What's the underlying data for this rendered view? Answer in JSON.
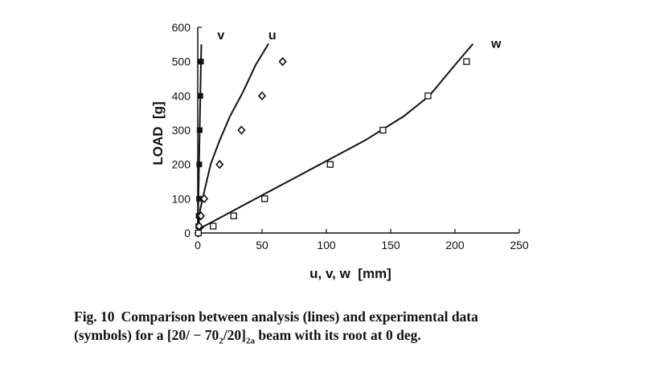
{
  "chart_data": {
    "type": "scatter",
    "xlabel": "u, v, w  [mm]",
    "ylabel": "LOAD  [g]",
    "xlim": [
      0,
      250
    ],
    "ylim": [
      0,
      600
    ],
    "x_ticks": [
      "0",
      "50",
      "100",
      "150",
      "200",
      "250"
    ],
    "y_ticks": [
      "0",
      "100",
      "200",
      "300",
      "400",
      "500",
      "600"
    ],
    "grid": false,
    "series_labels": {
      "v": "v",
      "u": "u",
      "w": "w"
    },
    "experimental": [
      {
        "name": "v",
        "marker": "filled-square",
        "points": [
          [
            0.5,
            0
          ],
          [
            0.5,
            20
          ],
          [
            0.7,
            50
          ],
          [
            1.0,
            100
          ],
          [
            1.2,
            200
          ],
          [
            1.5,
            300
          ],
          [
            2.0,
            400
          ],
          [
            2.5,
            500
          ]
        ]
      },
      {
        "name": "u",
        "marker": "diamond",
        "points": [
          [
            0.5,
            0
          ],
          [
            1.0,
            20
          ],
          [
            2.5,
            50
          ],
          [
            5,
            100
          ],
          [
            17,
            200
          ],
          [
            34,
            300
          ],
          [
            50,
            400
          ],
          [
            66,
            500
          ]
        ]
      },
      {
        "name": "w",
        "marker": "open-square",
        "points": [
          [
            0.5,
            0
          ],
          [
            12,
            20
          ],
          [
            28,
            50
          ],
          [
            52,
            100
          ],
          [
            103,
            200
          ],
          [
            144,
            300
          ],
          [
            179,
            400
          ],
          [
            209,
            500
          ]
        ]
      }
    ],
    "analysis": [
      {
        "name": "v",
        "points": [
          [
            0,
            0
          ],
          [
            0.5,
            100
          ],
          [
            1.0,
            200
          ],
          [
            1.5,
            300
          ],
          [
            2.0,
            400
          ],
          [
            2.5,
            500
          ],
          [
            2.8,
            550
          ]
        ]
      },
      {
        "name": "u",
        "points": [
          [
            0,
            0
          ],
          [
            2,
            70
          ],
          [
            5,
            120
          ],
          [
            10,
            200
          ],
          [
            17,
            270
          ],
          [
            25,
            340
          ],
          [
            35,
            410
          ],
          [
            45,
            490
          ],
          [
            55,
            552
          ]
        ]
      },
      {
        "name": "w",
        "points": [
          [
            0,
            0
          ],
          [
            5,
            20
          ],
          [
            20,
            50
          ],
          [
            40,
            90
          ],
          [
            60,
            130
          ],
          [
            80,
            170
          ],
          [
            100,
            210
          ],
          [
            130,
            270
          ],
          [
            160,
            340
          ],
          [
            180,
            400
          ],
          [
            200,
            490
          ],
          [
            214,
            552
          ]
        ]
      }
    ]
  },
  "caption": {
    "figure_label": "Fig. 10",
    "line1": "Comparison between analysis (lines) and experimental data",
    "line2_pre": "(symbols) for a [20/ − 70",
    "sub1": "2",
    "line2_mid": "/20]",
    "sub2": "2a",
    "line2_post": " beam with its root at 0 deg."
  }
}
